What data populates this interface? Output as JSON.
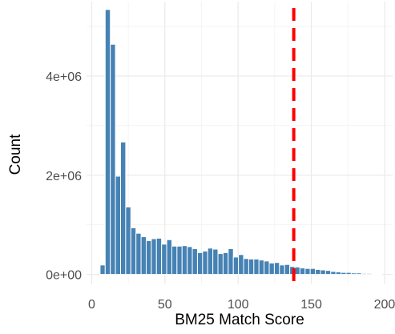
{
  "chart_data": {
    "type": "bar",
    "title": "",
    "xlabel": "BM25 Match Score",
    "ylabel": "Count",
    "xlim": [
      -3.5,
      205.5
    ],
    "ylim": [
      -200000,
      5500000
    ],
    "x_ticks": [
      0,
      50,
      100,
      150,
      200
    ],
    "x_tick_labels": [
      "0",
      "50",
      "100",
      "150",
      "200"
    ],
    "y_ticks": [
      0,
      2000000,
      4000000
    ],
    "y_tick_labels": [
      "0e+00",
      "2e+06",
      "4e+06"
    ],
    "grid": true,
    "bin_width": 3.5,
    "bar_color": "#4682B4",
    "x": [
      7.5,
      11.0,
      14.5,
      18.0,
      21.5,
      25.0,
      28.5,
      32.0,
      35.5,
      39.0,
      42.5,
      46.0,
      49.5,
      53.0,
      56.5,
      60.0,
      63.5,
      67.0,
      70.5,
      74.0,
      77.5,
      81.0,
      84.5,
      88.0,
      91.5,
      95.0,
      98.5,
      102.0,
      105.5,
      109.0,
      112.5,
      116.0,
      119.5,
      123.0,
      126.5,
      130.0,
      133.5,
      137.0,
      140.5,
      144.0,
      147.5,
      151.0,
      154.5,
      158.0,
      161.5,
      165.0,
      168.5,
      172.0,
      175.5,
      179.0,
      182.5,
      186.0,
      189.5,
      193.0,
      196.5
    ],
    "values": [
      190000,
      5340000,
      4640000,
      1980000,
      2670000,
      1360000,
      940000,
      830000,
      760000,
      680000,
      720000,
      730000,
      610000,
      700000,
      570000,
      570000,
      580000,
      560000,
      520000,
      440000,
      470000,
      530000,
      510000,
      420000,
      440000,
      520000,
      350000,
      400000,
      320000,
      310000,
      310000,
      290000,
      270000,
      230000,
      240000,
      190000,
      200000,
      160000,
      150000,
      130000,
      120000,
      120000,
      100000,
      90000,
      80000,
      60000,
      50000,
      40000,
      40000,
      30000,
      30000,
      20000,
      20000,
      15000,
      10000
    ],
    "threshold": {
      "x": 138,
      "color": "#FF0000",
      "style": "dashed"
    }
  }
}
